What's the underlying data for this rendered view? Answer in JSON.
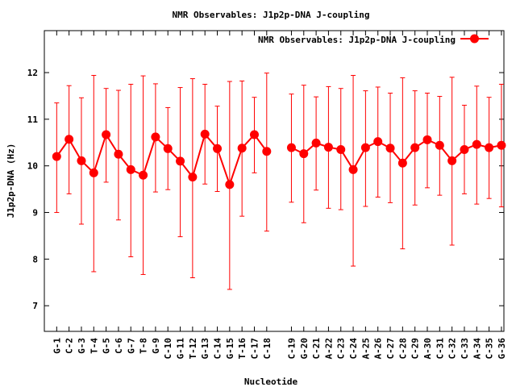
{
  "chart_data": {
    "type": "line",
    "title": "NMR Observables: J1p2p-DNA J-coupling",
    "xlabel": "Nucleotide",
    "ylabel": "J1p2p-DNA (Hz)",
    "ylim": [
      6.45,
      12.9
    ],
    "y_ticks": [
      7,
      8,
      9,
      10,
      11,
      12
    ],
    "grid": false,
    "legend_position": "top-right",
    "color": "#ff0000",
    "series": [
      {
        "name": "NMR Observables: J1p2p-DNA J-coupling",
        "points": [
          {
            "x": 1,
            "label": "G-1",
            "y": 10.2,
            "low": 9.0,
            "high": 11.35
          },
          {
            "x": 2,
            "label": "C-2",
            "y": 10.57,
            "low": 9.4,
            "high": 11.72
          },
          {
            "x": 3,
            "label": "G-3",
            "y": 10.11,
            "low": 8.75,
            "high": 11.46
          },
          {
            "x": 4,
            "label": "T-4",
            "y": 9.85,
            "low": 7.73,
            "high": 11.94
          },
          {
            "x": 5,
            "label": "G-5",
            "y": 10.67,
            "low": 9.65,
            "high": 11.66
          },
          {
            "x": 6,
            "label": "C-6",
            "y": 10.25,
            "low": 8.84,
            "high": 11.62
          },
          {
            "x": 7,
            "label": "G-7",
            "y": 9.92,
            "low": 8.05,
            "high": 11.75
          },
          {
            "x": 8,
            "label": "T-8",
            "y": 9.8,
            "low": 7.67,
            "high": 11.93
          },
          {
            "x": 9,
            "label": "G-9",
            "y": 10.62,
            "low": 9.44,
            "high": 11.76
          },
          {
            "x": 10,
            "label": "C-10",
            "y": 10.37,
            "low": 9.49,
            "high": 11.25
          },
          {
            "x": 11,
            "label": "G-11",
            "y": 10.1,
            "low": 8.48,
            "high": 11.68
          },
          {
            "x": 12,
            "label": "T-12",
            "y": 9.76,
            "low": 7.6,
            "high": 11.87
          },
          {
            "x": 13,
            "label": "G-13",
            "y": 10.68,
            "low": 9.61,
            "high": 11.75
          },
          {
            "x": 14,
            "label": "C-14",
            "y": 10.37,
            "low": 9.45,
            "high": 11.28
          },
          {
            "x": 15,
            "label": "G-15",
            "y": 9.6,
            "low": 7.35,
            "high": 11.81
          },
          {
            "x": 16,
            "label": "T-16",
            "y": 10.38,
            "low": 8.92,
            "high": 11.82
          },
          {
            "x": 17,
            "label": "C-17",
            "y": 10.67,
            "low": 9.85,
            "high": 11.47
          },
          {
            "x": 18,
            "label": "C-18",
            "y": 10.31,
            "low": 8.6,
            "high": 11.99
          },
          {
            "x": 20,
            "label": "C-19",
            "y": 10.39,
            "low": 9.22,
            "high": 11.54
          },
          {
            "x": 21,
            "label": "G-20",
            "y": 10.26,
            "low": 8.78,
            "high": 11.73
          },
          {
            "x": 22,
            "label": "C-21",
            "y": 10.49,
            "low": 9.48,
            "high": 11.48
          },
          {
            "x": 23,
            "label": "A-22",
            "y": 10.4,
            "low": 9.09,
            "high": 11.7
          },
          {
            "x": 24,
            "label": "C-23",
            "y": 10.35,
            "low": 9.06,
            "high": 11.66
          },
          {
            "x": 25,
            "label": "C-24",
            "y": 9.92,
            "low": 7.85,
            "high": 11.94
          },
          {
            "x": 26,
            "label": "A-25",
            "y": 10.39,
            "low": 9.13,
            "high": 11.61
          },
          {
            "x": 27,
            "label": "A-26",
            "y": 10.52,
            "low": 9.33,
            "high": 11.69
          },
          {
            "x": 28,
            "label": "C-27",
            "y": 10.38,
            "low": 9.21,
            "high": 11.56
          },
          {
            "x": 29,
            "label": "C-28",
            "y": 10.06,
            "low": 8.22,
            "high": 11.89
          },
          {
            "x": 30,
            "label": "C-29",
            "y": 10.39,
            "low": 9.16,
            "high": 11.61
          },
          {
            "x": 31,
            "label": "A-30",
            "y": 10.56,
            "low": 9.53,
            "high": 11.56
          },
          {
            "x": 32,
            "label": "C-31",
            "y": 10.44,
            "low": 9.37,
            "high": 11.49
          },
          {
            "x": 33,
            "label": "C-32",
            "y": 10.11,
            "low": 8.3,
            "high": 11.9
          },
          {
            "x": 34,
            "label": "C-33",
            "y": 10.35,
            "low": 9.4,
            "high": 11.3
          },
          {
            "x": 35,
            "label": "A-34",
            "y": 10.46,
            "low": 9.18,
            "high": 11.71
          },
          {
            "x": 36,
            "label": "C-35",
            "y": 10.39,
            "low": 9.3,
            "high": 11.47
          },
          {
            "x": 37,
            "label": "G-36",
            "y": 10.44,
            "low": 9.12,
            "high": 11.75
          }
        ]
      }
    ],
    "x_range": [
      0,
      37.2
    ]
  }
}
